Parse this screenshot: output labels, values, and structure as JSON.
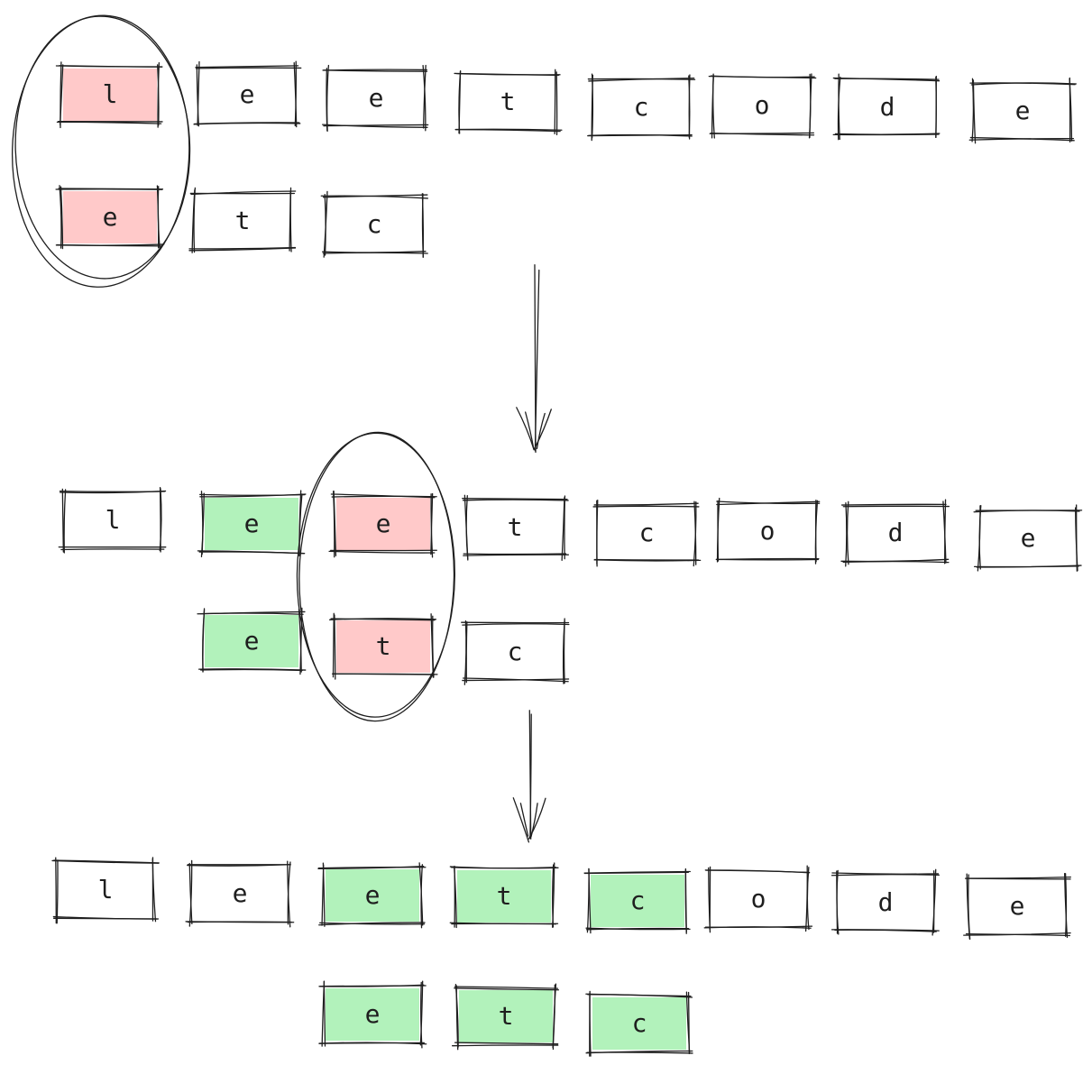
{
  "colors": {
    "stroke": "#1e1e1e",
    "mismatch": "#ffc9c9",
    "match": "#b2f2bb",
    "background": "#ffffff"
  },
  "diagram": {
    "steps": [
      {
        "haystack": [
          {
            "char": "l",
            "state": "mismatch"
          },
          {
            "char": "e",
            "state": "none"
          },
          {
            "char": "e",
            "state": "none"
          },
          {
            "char": "t",
            "state": "none"
          },
          {
            "char": "c",
            "state": "none"
          },
          {
            "char": "o",
            "state": "none"
          },
          {
            "char": "d",
            "state": "none"
          },
          {
            "char": "e",
            "state": "none"
          }
        ],
        "needle": [
          {
            "char": "e",
            "state": "mismatch"
          },
          {
            "char": "t",
            "state": "none"
          },
          {
            "char": "c",
            "state": "none"
          }
        ],
        "highlight": "comparison-circle-step-1"
      },
      {
        "haystack": [
          {
            "char": "l",
            "state": "none"
          },
          {
            "char": "e",
            "state": "match"
          },
          {
            "char": "e",
            "state": "mismatch"
          },
          {
            "char": "t",
            "state": "none"
          },
          {
            "char": "c",
            "state": "none"
          },
          {
            "char": "o",
            "state": "none"
          },
          {
            "char": "d",
            "state": "none"
          },
          {
            "char": "e",
            "state": "none"
          }
        ],
        "needle": [
          {
            "char": "e",
            "state": "match"
          },
          {
            "char": "t",
            "state": "mismatch"
          },
          {
            "char": "c",
            "state": "none"
          }
        ],
        "highlight": "comparison-circle-step-2"
      },
      {
        "haystack": [
          {
            "char": "l",
            "state": "none"
          },
          {
            "char": "e",
            "state": "none"
          },
          {
            "char": "e",
            "state": "match"
          },
          {
            "char": "t",
            "state": "match"
          },
          {
            "char": "c",
            "state": "match"
          },
          {
            "char": "o",
            "state": "none"
          },
          {
            "char": "d",
            "state": "none"
          },
          {
            "char": "e",
            "state": "none"
          }
        ],
        "needle": [
          {
            "char": "e",
            "state": "match"
          },
          {
            "char": "t",
            "state": "match"
          },
          {
            "char": "c",
            "state": "match"
          }
        ],
        "highlight": null
      }
    ]
  }
}
